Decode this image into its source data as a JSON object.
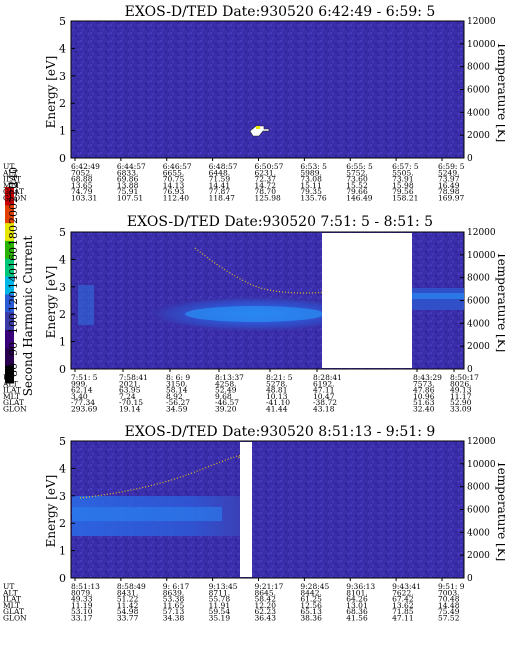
{
  "colorbar": {
    "label": "Second Harmonic Current",
    "ticks": [
      "80",
      "90",
      "100",
      "120",
      "140",
      "160",
      "180",
      "200",
      "220",
      "240"
    ],
    "colors": [
      "#000000",
      "#2a0050",
      "#3a007a",
      "#3a3aa8",
      "#2a5cd8",
      "#00b7e8",
      "#00c87a",
      "#28b400",
      "#e6e600",
      "#e04000",
      "#c80000"
    ]
  },
  "panels": [
    {
      "title": "EXOS-D/TED   Date:930520  6:42:49 - 6:59: 5",
      "y_label": "Energy [eV]",
      "y_ticks": [
        "0",
        "1",
        "2",
        "3",
        "4",
        "5"
      ],
      "right_label": "Temperature [K]",
      "right_ticks": [
        "0",
        "2000",
        "4000",
        "6000",
        "8000",
        "10000",
        "12000"
      ],
      "eph_labels": [
        "UT",
        "ALT",
        "ILAT",
        "MLT",
        "GLAT",
        "GLON"
      ],
      "columns": [
        [
          "6:42:49",
          "7052.",
          "68.88",
          "13.65",
          "74.79",
          "103.31"
        ],
        [
          "6:44:57",
          "6833.",
          "69.86",
          "13.88",
          "75.91",
          "107.51"
        ],
        [
          "6:46:57",
          "6655.",
          "70.75",
          "14.13",
          "76.93",
          "112.40"
        ],
        [
          "6:48:57",
          "6448.",
          "71.59",
          "14.41",
          "77.87",
          "118.47"
        ],
        [
          "6:50:57",
          "6231.",
          "72.37",
          "14.72",
          "78.70",
          "125.98"
        ],
        [
          "6:53: 5",
          "5989.",
          "73.08",
          "15.11",
          "79.35",
          "135.76"
        ],
        [
          "6:55: 5",
          "5752.",
          "73.60",
          "15.52",
          "79.66",
          "146.49"
        ],
        [
          "6:57: 5",
          "5505.",
          "73.91",
          "15.98",
          "79.56",
          "158.21"
        ],
        [
          "6:59: 5",
          "5249.",
          "73.97",
          "16.49",
          "78.98",
          "169.97"
        ]
      ]
    },
    {
      "title": "EXOS-D/TED   Date:930520  7:51: 5 - 8:51: 5",
      "y_label": "Energy [eV]",
      "y_ticks": [
        "0",
        "1",
        "2",
        "3",
        "4",
        "5"
      ],
      "right_label": "Temperature [K]",
      "right_ticks": [
        "0",
        "2000",
        "4000",
        "6000",
        "8000",
        "10000",
        "12000"
      ],
      "eph_labels": [
        "UT",
        "ALT",
        "ILAT",
        "MLT",
        "GLAT",
        "GLON"
      ],
      "columns": [
        [
          "7:51: 5",
          "999.",
          "62.14",
          "3.40",
          "-77.34",
          "293.69"
        ],
        [
          "7:58:41",
          "2021.",
          "63.95",
          "7.24",
          "-70.15",
          "19.14"
        ],
        [
          "8: 6: 9",
          "3150.",
          "58.14",
          "8.92",
          "-56.27",
          "34.59"
        ],
        [
          "8:13:37",
          "4258.",
          "52.49",
          "9.68",
          "-46.57",
          "39.20"
        ],
        [
          "8:21: 5",
          "5278.",
          "48.81",
          "10.13",
          "-41.10",
          "41.44"
        ],
        [
          "8:28:41",
          "6192.",
          "47.11",
          "10.47",
          "-38.72",
          "43.18"
        ],
        [
          "8:43:29",
          "7573.",
          "47.86",
          "10.96",
          "51.63",
          "32.40"
        ],
        [
          "8:50:17",
          "8026.",
          "49.13",
          "11.17",
          "52.90",
          "33.09"
        ]
      ]
    },
    {
      "title": "EXOS-D/TED   Date:930520  8:51:13 - 9:51: 9",
      "y_label": "Energy [eV]",
      "y_ticks": [
        "0",
        "1",
        "2",
        "3",
        "4",
        "5"
      ],
      "right_label": "Temperature [K]",
      "right_ticks": [
        "0",
        "2000",
        "4000",
        "6000",
        "8000",
        "10000",
        "12000"
      ],
      "eph_labels": [
        "UT",
        "ALT",
        "ILAT",
        "MLT",
        "GLAT",
        "GLON"
      ],
      "columns": [
        [
          "8:51:13",
          "8079.",
          "49.33",
          "11.19",
          "53.10",
          "33.17"
        ],
        [
          "8:58:49",
          "8431.",
          "51.22",
          "11.42",
          "54.98",
          "33.77"
        ],
        [
          "9: 6:17",
          "8639.",
          "53.38",
          "11.65",
          "57.13",
          "34.38"
        ],
        [
          "9:13:45",
          "8711.",
          "55.78",
          "11.91",
          "59.54",
          "35.19"
        ],
        [
          "9:21:17",
          "8645.",
          "58.42",
          "12.20",
          "62.23",
          "36.43"
        ],
        [
          "9:28:45",
          "8442.",
          "61.25",
          "12.56",
          "65.13",
          "38.36"
        ],
        [
          "9:36:13",
          "8101.",
          "64.26",
          "13.01",
          "68.36",
          "41.56"
        ],
        [
          "9:43:41",
          "7622.",
          "67.42",
          "13.62",
          "71.85",
          "47.11"
        ],
        [
          "9:51: 9",
          "7003.",
          "70.48",
          "14.48",
          "75.49",
          "57.52"
        ]
      ]
    }
  ],
  "chart_data": [
    {
      "type": "heatmap",
      "title": "EXOS-D/TED   Date:930520  6:42:49 - 6:59: 5",
      "x_ticks": [
        "6:42:49",
        "6:44:57",
        "6:46:57",
        "6:48:57",
        "6:50:57",
        "6:53: 5",
        "6:55: 5",
        "6:57: 5",
        "6:59: 5"
      ],
      "ylabel": "Energy [eV]",
      "ylim": [
        0,
        5
      ],
      "y2label": "Temperature [K]",
      "y2lim": [
        0,
        12000
      ],
      "colorbar_label": "Second Harmonic Current",
      "colorbar_range": [
        80,
        240
      ]
    },
    {
      "type": "heatmap",
      "title": "EXOS-D/TED   Date:930520  7:51: 5 - 8:51: 5",
      "x_ticks": [
        "7:51: 5",
        "7:58:41",
        "8: 6: 9",
        "8:13:37",
        "8:21: 5",
        "8:28:41",
        "8:43:29",
        "8:50:17"
      ],
      "ylabel": "Energy [eV]",
      "ylim": [
        0,
        5
      ],
      "y2label": "Temperature [K]",
      "y2lim": [
        0,
        12000
      ],
      "colorbar_label": "Second Harmonic Current",
      "colorbar_range": [
        80,
        240
      ]
    },
    {
      "type": "heatmap",
      "title": "EXOS-D/TED   Date:930520  8:51:13 - 9:51: 9",
      "x_ticks": [
        "8:51:13",
        "8:58:49",
        "9: 6:17",
        "9:13:45",
        "9:21:17",
        "9:28:45",
        "9:36:13",
        "9:43:41",
        "9:51: 9"
      ],
      "ylabel": "Energy [eV]",
      "ylim": [
        0,
        5
      ],
      "y2label": "Temperature [K]",
      "y2lim": [
        0,
        12000
      ],
      "colorbar_label": "Second Harmonic Current",
      "colorbar_range": [
        80,
        240
      ]
    }
  ]
}
